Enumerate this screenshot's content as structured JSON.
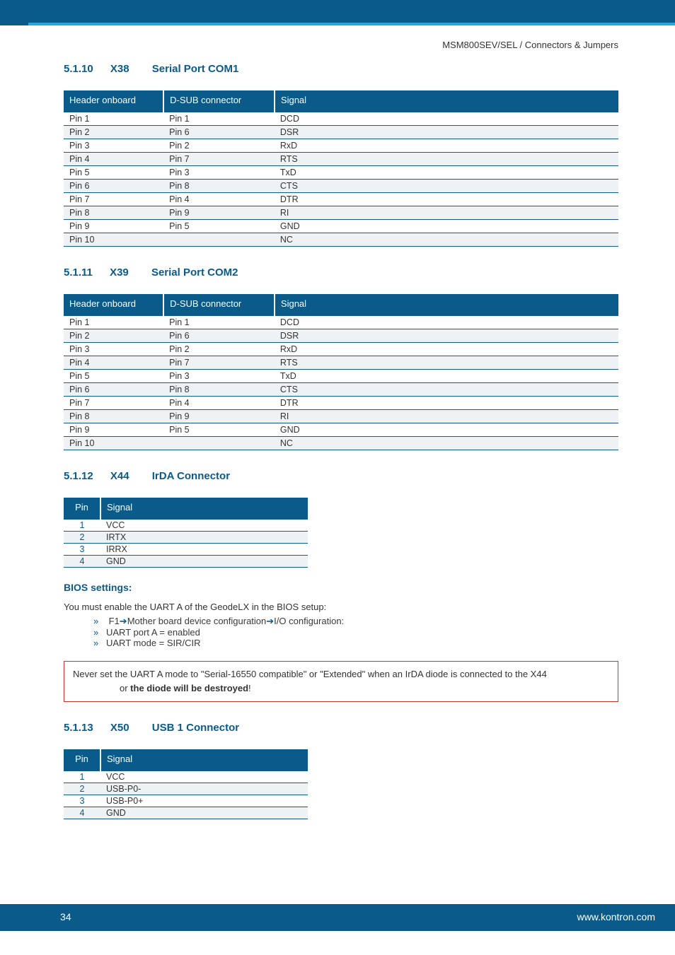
{
  "breadcrumb": "MSM800SEV/SEL / Connectors & Jumpers",
  "sections": {
    "s5110": {
      "num": "5.1.10",
      "ref": "X38",
      "title": "Serial Port COM1"
    },
    "s5111": {
      "num": "5.1.11",
      "ref": "X39",
      "title": "Serial Port COM2"
    },
    "s5112": {
      "num": "5.1.12",
      "ref": "X44",
      "title": "IrDA Connector"
    },
    "s5113": {
      "num": "5.1.13",
      "ref": "X50",
      "title": "USB 1 Connector"
    }
  },
  "table_headers": {
    "header_onboard": "Header onboard",
    "dsub": "D-SUB connector",
    "signal": "Signal",
    "pin": "Pin"
  },
  "com1": {
    "rows": [
      {
        "a": "Pin 1",
        "b": "Pin 1",
        "c": "DCD"
      },
      {
        "a": "Pin 2",
        "b": "Pin 6",
        "c": "DSR"
      },
      {
        "a": "Pin 3",
        "b": "Pin 2",
        "c": "RxD"
      },
      {
        "a": "Pin 4",
        "b": "Pin 7",
        "c": "RTS"
      },
      {
        "a": "Pin 5",
        "b": "Pin 3",
        "c": "TxD"
      },
      {
        "a": "Pin 6",
        "b": "Pin 8",
        "c": "CTS"
      },
      {
        "a": "Pin 7",
        "b": "Pin 4",
        "c": "DTR"
      },
      {
        "a": "Pin 8",
        "b": "Pin 9",
        "c": "RI"
      },
      {
        "a": "Pin 9",
        "b": "Pin 5",
        "c": "GND"
      },
      {
        "a": "Pin 10",
        "b": "",
        "c": "NC"
      }
    ]
  },
  "com2": {
    "rows": [
      {
        "a": "Pin 1",
        "b": "Pin 1",
        "c": "DCD"
      },
      {
        "a": "Pin 2",
        "b": "Pin 6",
        "c": "DSR"
      },
      {
        "a": "Pin 3",
        "b": "Pin 2",
        "c": "RxD"
      },
      {
        "a": "Pin 4",
        "b": "Pin 7",
        "c": "RTS"
      },
      {
        "a": "Pin 5",
        "b": "Pin 3",
        "c": "TxD"
      },
      {
        "a": "Pin 6",
        "b": "Pin 8",
        "c": "CTS"
      },
      {
        "a": "Pin 7",
        "b": "Pin 4",
        "c": "DTR"
      },
      {
        "a": "Pin 8",
        "b": "Pin 9",
        "c": "RI"
      },
      {
        "a": "Pin 9",
        "b": "Pin 5",
        "c": "GND"
      },
      {
        "a": "Pin 10",
        "b": "",
        "c": "NC"
      }
    ]
  },
  "irda": {
    "rows": [
      {
        "pin": "1",
        "sig": "VCC"
      },
      {
        "pin": "2",
        "sig": "IRTX"
      },
      {
        "pin": "3",
        "sig": "IRRX"
      },
      {
        "pin": "4",
        "sig": "GND"
      }
    ]
  },
  "usb1": {
    "rows": [
      {
        "pin": "1",
        "sig": "VCC"
      },
      {
        "pin": "2",
        "sig": "USB-P0-"
      },
      {
        "pin": "3",
        "sig": "USB-P0+"
      },
      {
        "pin": "4",
        "sig": "GND"
      }
    ]
  },
  "bios": {
    "heading": "BIOS settings:",
    "intro": "You must enable the UART A of the GeodeLX in the BIOS setup:",
    "items": {
      "l1a": "F1",
      "l1b": "Mother board device configuration",
      "l1c": "I/O configuration:",
      "l2": "UART port A = enabled",
      "l3": "UART mode = SIR/CIR"
    }
  },
  "warning": {
    "l1": "Never set the UART A mode to \"Serial-16550 compatible\" or \"Extended\" when an IrDA diode is connected to the X44",
    "l2a": "or ",
    "l2b": "the diode will be destroyed",
    "l2c": "!"
  },
  "footer": {
    "page": "34",
    "url": "www.kontron.com"
  },
  "colors": {
    "brand_dark": "#0a5a8a",
    "brand_light": "#2aa5d8",
    "row_alt": "#eef2f4",
    "warn_border": "#c0392b",
    "text": "#333333",
    "white": "#ffffff"
  }
}
